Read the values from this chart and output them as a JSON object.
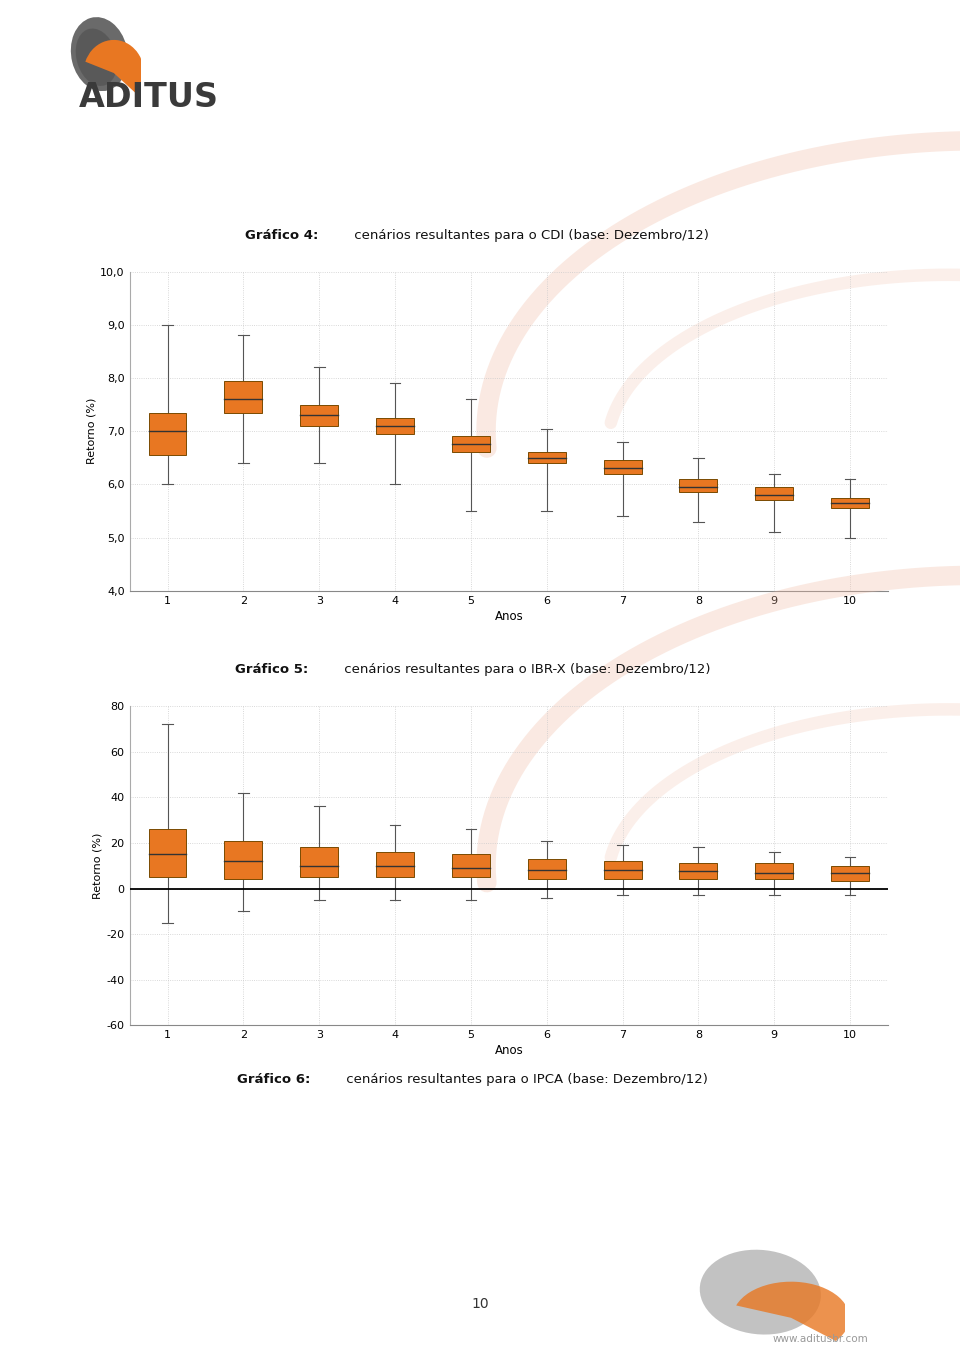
{
  "page_background": "#ffffff",
  "xlabel": "Anos",
  "ylabel": "Retorno (%)",
  "x_ticks": [
    1,
    2,
    3,
    4,
    5,
    6,
    7,
    8,
    9,
    10
  ],
  "chart4_ylim": [
    4.0,
    10.0
  ],
  "chart4_yticks": [
    4.0,
    5.0,
    6.0,
    7.0,
    8.0,
    9.0,
    10.0
  ],
  "chart4_ytick_labels": [
    "4,0",
    "5,0",
    "6,0",
    "7,0",
    "8,0",
    "9,0",
    "10,0"
  ],
  "chart4_boxes": [
    {
      "x": 1,
      "q1": 6.55,
      "q3": 7.35,
      "median": 7.0,
      "whislo": 6.0,
      "whishi": 9.0
    },
    {
      "x": 2,
      "q1": 7.35,
      "q3": 7.95,
      "median": 7.6,
      "whislo": 6.4,
      "whishi": 8.8
    },
    {
      "x": 3,
      "q1": 7.1,
      "q3": 7.5,
      "median": 7.3,
      "whislo": 6.4,
      "whishi": 8.2
    },
    {
      "x": 4,
      "q1": 6.95,
      "q3": 7.25,
      "median": 7.1,
      "whislo": 6.0,
      "whishi": 7.9
    },
    {
      "x": 5,
      "q1": 6.6,
      "q3": 6.9,
      "median": 6.75,
      "whislo": 5.5,
      "whishi": 7.6
    },
    {
      "x": 6,
      "q1": 6.4,
      "q3": 6.6,
      "median": 6.5,
      "whislo": 5.5,
      "whishi": 7.05
    },
    {
      "x": 7,
      "q1": 6.2,
      "q3": 6.45,
      "median": 6.3,
      "whislo": 5.4,
      "whishi": 6.8
    },
    {
      "x": 8,
      "q1": 5.85,
      "q3": 6.1,
      "median": 5.95,
      "whislo": 5.3,
      "whishi": 6.5
    },
    {
      "x": 9,
      "q1": 5.7,
      "q3": 5.95,
      "median": 5.8,
      "whislo": 5.1,
      "whishi": 6.2
    },
    {
      "x": 10,
      "q1": 5.55,
      "q3": 5.75,
      "median": 5.65,
      "whislo": 5.0,
      "whishi": 6.1
    }
  ],
  "chart5_ylim": [
    -60,
    80
  ],
  "chart5_yticks": [
    -60,
    -40,
    -20,
    0,
    20,
    40,
    60,
    80
  ],
  "chart5_ytick_labels": [
    "-60",
    "-40",
    "-20",
    "0",
    "20",
    "40",
    "60",
    "80"
  ],
  "chart5_boxes": [
    {
      "x": 1,
      "q1": 5.0,
      "q3": 26.0,
      "median": 15.0,
      "whislo": -15.0,
      "whishi": 72.0
    },
    {
      "x": 2,
      "q1": 4.0,
      "q3": 21.0,
      "median": 12.0,
      "whislo": -10.0,
      "whishi": 42.0
    },
    {
      "x": 3,
      "q1": 5.0,
      "q3": 18.0,
      "median": 10.0,
      "whislo": -5.0,
      "whishi": 36.0
    },
    {
      "x": 4,
      "q1": 5.0,
      "q3": 16.0,
      "median": 10.0,
      "whislo": -5.0,
      "whishi": 28.0
    },
    {
      "x": 5,
      "q1": 5.0,
      "q3": 15.0,
      "median": 9.0,
      "whislo": -5.0,
      "whishi": 26.0
    },
    {
      "x": 6,
      "q1": 4.0,
      "q3": 13.0,
      "median": 8.0,
      "whislo": -4.0,
      "whishi": 21.0
    },
    {
      "x": 7,
      "q1": 4.0,
      "q3": 12.0,
      "median": 8.0,
      "whislo": -3.0,
      "whishi": 19.0
    },
    {
      "x": 8,
      "q1": 4.0,
      "q3": 11.0,
      "median": 7.5,
      "whislo": -3.0,
      "whishi": 18.0
    },
    {
      "x": 9,
      "q1": 4.0,
      "q3": 11.0,
      "median": 7.0,
      "whislo": -3.0,
      "whishi": 16.0
    },
    {
      "x": 10,
      "q1": 3.5,
      "q3": 10.0,
      "median": 7.0,
      "whislo": -3.0,
      "whishi": 14.0
    }
  ],
  "box_color": "#E87722",
  "box_edge_color": "#7a4a00",
  "whisker_color": "#555555",
  "median_color": "#333333",
  "grid_color": "#cccccc",
  "zero_line_color": "#000000",
  "title4_bold": "Gráfico 4:",
  "title4_rest": " cenários resultantes para o CDI (base: Dezembro/12)",
  "title5_bold": "Gráfico 5:",
  "title5_rest": " cenários resultantes para o IBR-X (base: Dezembro/12)",
  "title6_bold": "Gráfico 6:",
  "title6_rest": " cenários resultantes para o IPCA (base: Dezembro/12)",
  "aditus_text": "ADITUS",
  "footer_url": "www.aditusbr.com",
  "page_number": "10",
  "watermark_color": "#f0b090"
}
